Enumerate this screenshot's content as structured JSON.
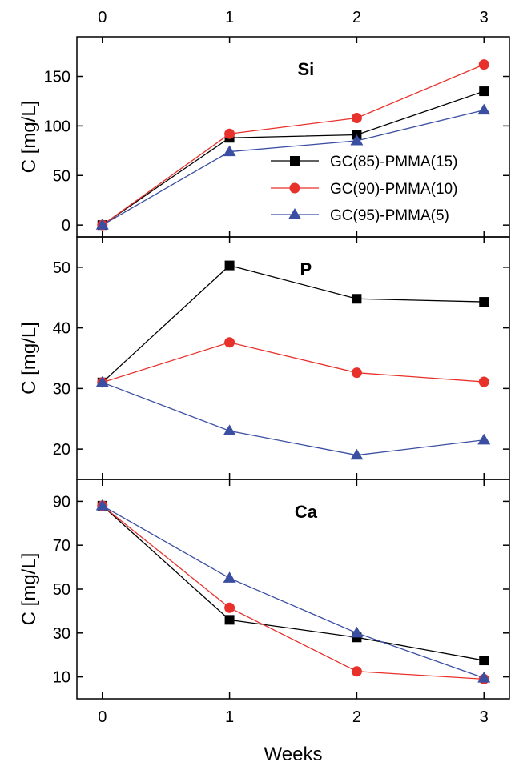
{
  "chart_data": {
    "type": "line",
    "xlabel": "Weeks",
    "x": [
      0,
      1,
      2,
      3
    ],
    "xlim": [
      -0.2,
      3.2
    ],
    "xticks": [
      0,
      1,
      2,
      3
    ],
    "legend": {
      "placement": "inside Si panel, lower right"
    },
    "series_styles": [
      {
        "name": "GC(85)-PMMA(15)",
        "color": "#000000",
        "marker": "square"
      },
      {
        "name": "GC(90)-PMMA(10)",
        "color": "#e8312b",
        "marker": "circle"
      },
      {
        "name": "GC(95)-PMMA(5)",
        "color": "#3a4ea2",
        "marker": "triangle"
      }
    ],
    "panels": [
      {
        "title": "Si",
        "ylabel": "C [mg/L]",
        "ylim": [
          -12,
          190
        ],
        "yticks": [
          0,
          50,
          100,
          150
        ],
        "series": [
          {
            "name": "GC(85)-PMMA(15)",
            "values": [
              0,
              88,
              91,
              135
            ]
          },
          {
            "name": "GC(90)-PMMA(10)",
            "values": [
              0,
              92,
              108,
              162
            ]
          },
          {
            "name": "GC(95)-PMMA(5)",
            "values": [
              0,
              74,
              85,
              116
            ]
          }
        ]
      },
      {
        "title": "P",
        "ylabel": "C [mg/L]",
        "ylim": [
          15,
          55
        ],
        "yticks": [
          20,
          30,
          40,
          50
        ],
        "series": [
          {
            "name": "GC(85)-PMMA(15)",
            "values": [
              31,
              50.3,
              44.8,
              44.3
            ]
          },
          {
            "name": "GC(90)-PMMA(10)",
            "values": [
              31,
              37.6,
              32.6,
              31.1
            ]
          },
          {
            "name": "GC(95)-PMMA(5)",
            "values": [
              31,
              23,
              19,
              21.5
            ]
          }
        ]
      },
      {
        "title": "Ca",
        "ylabel": "C [mg/L]",
        "ylim": [
          0,
          100
        ],
        "yticks": [
          10,
          30,
          50,
          70,
          90
        ],
        "series": [
          {
            "name": "GC(85)-PMMA(15)",
            "values": [
              88,
              36,
              28,
              17.5
            ]
          },
          {
            "name": "GC(90)-PMMA(10)",
            "values": [
              88,
              41.5,
              12.5,
              9
            ]
          },
          {
            "name": "GC(95)-PMMA(5)",
            "values": [
              88,
              55,
              30,
              9.5
            ]
          }
        ]
      }
    ]
  }
}
